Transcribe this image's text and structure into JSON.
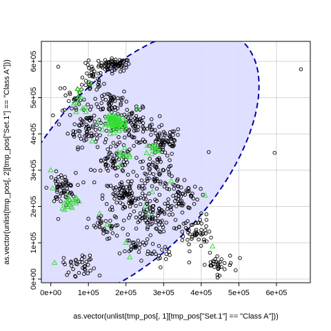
{
  "chart_data": {
    "type": "scatter",
    "title": "",
    "xlabel": "as.vector(unlist(tmp_pos[, 1][tmp_pos[\"Set.1\"] == \"Class A\"]))",
    "ylabel": "as.vector(unlist(tmp_pos[, 2][tmp_pos[\"Set.1\"] == \"Class A\"]))",
    "xlim": [
      -25000,
      690000
    ],
    "ylim": [
      -10000,
      655000
    ],
    "x_ticks": [
      0,
      100000,
      200000,
      300000,
      400000,
      500000,
      600000
    ],
    "x_tick_labels": [
      "0e+00",
      "1e+05",
      "2e+05",
      "3e+05",
      "4e+05",
      "5e+05",
      "6e+05"
    ],
    "y_ticks": [
      0,
      100000,
      200000,
      300000,
      400000,
      500000,
      600000
    ],
    "y_tick_labels": [
      "0e+00",
      "1e+05",
      "2e+05",
      "3e+05",
      "4e+05",
      "5e+05",
      "6e+05"
    ],
    "grid": true,
    "colors": {
      "points": "#000000",
      "triangles": "#33dd33",
      "ellipse_fill": "#dcdcff",
      "ellipse_stroke": "#0000aa",
      "grid": "#d3d3d3"
    },
    "ellipse": {
      "center": [
        215000,
        315000
      ],
      "semi_axes": [
        450000,
        230000
      ],
      "angle_deg": 50
    },
    "series": [
      {
        "marker": "circle",
        "clusters": [
          {
            "center": [
              170000,
              590000
            ],
            "spread": [
              35000,
              15000
            ],
            "n": 70
          },
          {
            "center": [
              110000,
              550000
            ],
            "spread": [
              25000,
              35000
            ],
            "n": 35
          },
          {
            "center": [
              60000,
              500000
            ],
            "spread": [
              25000,
              40000
            ],
            "n": 25
          },
          {
            "center": [
              160000,
              490000
            ],
            "spread": [
              40000,
              30000
            ],
            "n": 45
          },
          {
            "center": [
              100000,
              420000
            ],
            "spread": [
              45000,
              45000
            ],
            "n": 80
          },
          {
            "center": [
              220000,
              420000
            ],
            "spread": [
              45000,
              40000
            ],
            "n": 80
          },
          {
            "center": [
              300000,
              380000
            ],
            "spread": [
              40000,
              35000
            ],
            "n": 70
          },
          {
            "center": [
              170000,
              320000
            ],
            "spread": [
              40000,
              35000
            ],
            "n": 55
          },
          {
            "center": [
              280000,
              300000
            ],
            "spread": [
              45000,
              35000
            ],
            "n": 60
          },
          {
            "center": [
              30000,
              250000
            ],
            "spread": [
              30000,
              35000
            ],
            "n": 60
          },
          {
            "center": [
              200000,
              230000
            ],
            "spread": [
              50000,
              40000
            ],
            "n": 90
          },
          {
            "center": [
              340000,
              230000
            ],
            "spread": [
              45000,
              40000
            ],
            "n": 70
          },
          {
            "center": [
              260000,
              170000
            ],
            "spread": [
              45000,
              35000
            ],
            "n": 70
          },
          {
            "center": [
              380000,
              130000
            ],
            "spread": [
              40000,
              40000
            ],
            "n": 55
          },
          {
            "center": [
              150000,
              140000
            ],
            "spread": [
              40000,
              30000
            ],
            "n": 35
          },
          {
            "center": [
              230000,
              90000
            ],
            "spread": [
              35000,
              25000
            ],
            "n": 30
          },
          {
            "center": [
              80000,
              40000
            ],
            "spread": [
              40000,
              25000
            ],
            "n": 35
          },
          {
            "center": [
              440000,
              40000
            ],
            "spread": [
              40000,
              25000
            ],
            "n": 35
          },
          {
            "center": [
              300000,
              70000
            ],
            "spread": [
              30000,
              20000
            ],
            "n": 15
          }
        ],
        "outliers": [
          [
            665000,
            578000
          ],
          [
            595000,
            348000
          ],
          [
            420000,
            350000
          ],
          [
            20000,
            585000
          ],
          [
            130000,
            10000
          ]
        ]
      },
      {
        "marker": "triangle",
        "clusters": [
          {
            "center": [
              175000,
              430000
            ],
            "spread": [
              22000,
              18000
            ],
            "n": 70
          },
          {
            "center": [
              270000,
              360000
            ],
            "spread": [
              12000,
              12000
            ],
            "n": 12
          },
          {
            "center": [
              50000,
              210000
            ],
            "spread": [
              25000,
              15000
            ],
            "n": 18
          },
          {
            "center": [
              80000,
              490000
            ],
            "spread": [
              25000,
              30000
            ],
            "n": 10
          },
          {
            "center": [
              200000,
              340000
            ],
            "spread": [
              20000,
              15000
            ],
            "n": 10
          }
        ],
        "points": [
          [
            5000,
            250000
          ],
          [
            10000,
            45000
          ],
          [
            210000,
            60000
          ],
          [
            200000,
            100000
          ],
          [
            430000,
            90000
          ],
          [
            130000,
            180000
          ],
          [
            150000,
            150000
          ],
          [
            260000,
            180000
          ],
          [
            110000,
            380000
          ],
          [
            230000,
            470000
          ],
          [
            105000,
            540000
          ],
          [
            270000,
            240000
          ],
          [
            320000,
            270000
          ],
          [
            410000,
            230000
          ],
          [
            0,
            300000
          ],
          [
            250000,
            200000
          ]
        ]
      }
    ]
  }
}
